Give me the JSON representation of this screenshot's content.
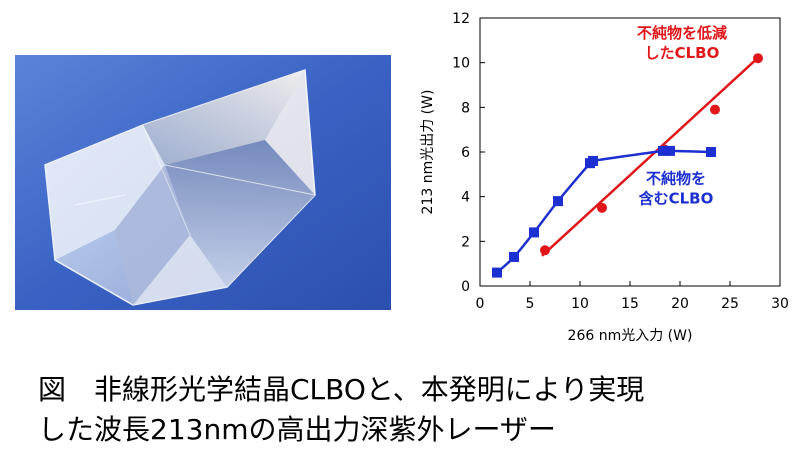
{
  "photo": {
    "icon": "clbo-crystal-photo",
    "bg_color": "#3a62c4"
  },
  "chart_data": {
    "type": "scatter",
    "xlabel": "266 nm光入力 (W)",
    "ylabel": "213 nm光出力 (W)",
    "xlim": [
      0,
      30
    ],
    "ylim": [
      0,
      12
    ],
    "xticks": [
      0,
      5,
      10,
      15,
      20,
      25,
      30
    ],
    "yticks": [
      0,
      2,
      4,
      6,
      8,
      10,
      12
    ],
    "grid": false,
    "series": [
      {
        "color": "#e0161a",
        "marker": "circle",
        "fit": "linear",
        "x": [
          6.5,
          12.2,
          18.5,
          23.5,
          27.8
        ],
        "y": [
          1.6,
          3.5,
          6.1,
          7.9,
          10.2
        ],
        "fit_line": {
          "x": [
            6.2,
            28.0
          ],
          "y": [
            1.35,
            10.3
          ]
        }
      },
      {
        "color": "#1c2fd0",
        "marker": "square",
        "fit": "smooth",
        "x": [
          1.7,
          3.4,
          5.4,
          7.8,
          11.0,
          11.3,
          18.3,
          19.0,
          23.1
        ],
        "y": [
          0.6,
          1.3,
          2.4,
          3.8,
          5.5,
          5.6,
          6.05,
          6.05,
          6.0
        ]
      }
    ],
    "annotations": [
      {
        "lines": [
          "不純物を低減",
          "したCLBO"
        ],
        "color": "#e0161a",
        "x": 20.2,
        "y": 11.1
      },
      {
        "lines": [
          "不純物を",
          "含むCLBO"
        ],
        "color": "#1c2fd0",
        "x": 19.6,
        "y": 4.6
      }
    ]
  },
  "caption": {
    "line1": "図　非線形光学結晶CLBOと、本発明により実現",
    "line2": "した波長213nmの高出力深紫外レーザー"
  }
}
